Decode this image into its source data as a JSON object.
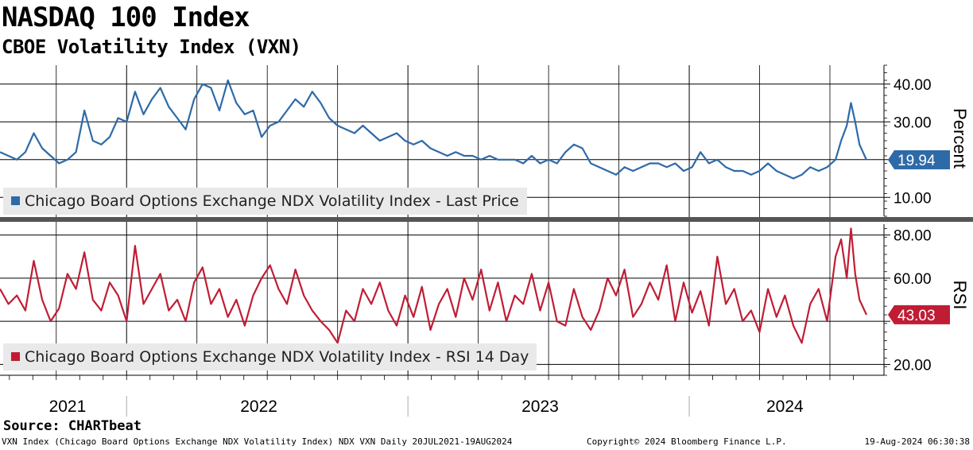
{
  "header": {
    "title": "NASDAQ 100 Index",
    "subtitle": "CBOE Volatility Index (VXN)"
  },
  "footer": {
    "source": "Source: CHARTbeat",
    "ticker_info": "VXN Index (Chicago Board Options Exchange NDX Volatility Index) NDX VXN  Daily 20JUL2021-19AUG2024",
    "copyright": "Copyright© 2024 Bloomberg Finance L.P.",
    "timestamp": "19-Aug-2024 06:30:38"
  },
  "colors": {
    "vxn_line": "#2e6aa8",
    "rsi_line": "#c01d35",
    "grid": "#000000",
    "legend_bg": "#e9e9e9",
    "separator": "#555555"
  },
  "chart_data": [
    {
      "type": "line",
      "panel": "top",
      "ylabel": "Percent",
      "ylim": [
        5,
        45
      ],
      "yticks": [
        10,
        20,
        30,
        40
      ],
      "ytick_labels": [
        "10.00",
        "",
        "30.00",
        "40.00"
      ],
      "last_value_label": "19.94",
      "last_value": 19.94,
      "legend": "Chicago Board Options Exchange NDX Volatility Index - Last Price",
      "x_range": [
        2021.55,
        2024.63
      ],
      "series": [
        {
          "name": "Chicago Board Options Exchange NDX Volatility Index - Last Price",
          "x": [
            2021.55,
            2021.58,
            2021.61,
            2021.64,
            2021.67,
            2021.7,
            2021.73,
            2021.76,
            2021.79,
            2021.82,
            2021.85,
            2021.88,
            2021.91,
            2021.94,
            2021.97,
            2022.0,
            2022.03,
            2022.06,
            2022.09,
            2022.12,
            2022.15,
            2022.18,
            2022.21,
            2022.24,
            2022.27,
            2022.3,
            2022.33,
            2022.36,
            2022.39,
            2022.42,
            2022.45,
            2022.48,
            2022.51,
            2022.54,
            2022.57,
            2022.6,
            2022.63,
            2022.66,
            2022.69,
            2022.72,
            2022.75,
            2022.78,
            2022.81,
            2022.84,
            2022.87,
            2022.9,
            2022.93,
            2022.96,
            2022.99,
            2023.02,
            2023.05,
            2023.08,
            2023.11,
            2023.14,
            2023.17,
            2023.2,
            2023.23,
            2023.26,
            2023.29,
            2023.32,
            2023.35,
            2023.38,
            2023.41,
            2023.44,
            2023.47,
            2023.5,
            2023.53,
            2023.56,
            2023.59,
            2023.62,
            2023.65,
            2023.68,
            2023.71,
            2023.74,
            2023.77,
            2023.8,
            2023.83,
            2023.86,
            2023.89,
            2023.92,
            2023.95,
            2023.98,
            2024.01,
            2024.04,
            2024.07,
            2024.1,
            2024.13,
            2024.16,
            2024.19,
            2024.22,
            2024.25,
            2024.28,
            2024.31,
            2024.34,
            2024.37,
            2024.4,
            2024.43,
            2024.46,
            2024.49,
            2024.52,
            2024.54,
            2024.56,
            2024.575,
            2024.59,
            2024.605,
            2024.63
          ],
          "values": [
            22,
            21,
            20,
            22,
            27,
            23,
            21,
            19,
            20,
            22,
            33,
            25,
            24,
            26,
            31,
            30,
            38,
            32,
            36,
            39,
            34,
            31,
            28,
            36,
            40,
            39,
            33,
            41,
            35,
            32,
            33,
            26,
            29,
            30,
            33,
            36,
            34,
            38,
            35,
            31,
            29,
            28,
            27,
            29,
            27,
            25,
            26,
            27,
            25,
            24,
            25,
            23,
            22,
            21,
            22,
            21,
            21,
            20,
            21,
            20,
            20,
            20,
            19,
            21,
            19,
            20,
            19,
            22,
            24,
            23,
            19,
            18,
            17,
            16,
            18,
            17,
            18,
            19,
            19,
            18,
            19,
            17,
            18,
            22,
            19,
            20,
            18,
            17,
            17,
            16,
            17,
            19,
            17,
            16,
            15,
            16,
            18,
            17,
            18,
            20,
            25,
            29,
            35,
            30,
            24,
            19.94
          ]
        }
      ]
    },
    {
      "type": "line",
      "panel": "bottom",
      "ylabel": "RSI",
      "ylim": [
        15,
        85
      ],
      "yticks": [
        20,
        40,
        60,
        80
      ],
      "ytick_labels": [
        "20.00",
        "",
        "60.00",
        "80.00"
      ],
      "last_value_label": "43.03",
      "last_value": 43.03,
      "legend": "Chicago Board Options Exchange NDX Volatility Index - RSI 14 Day",
      "x_range": [
        2021.55,
        2024.63
      ],
      "series": [
        {
          "name": "Chicago Board Options Exchange NDX Volatility Index - RSI 14 Day",
          "x": [
            2021.55,
            2021.58,
            2021.61,
            2021.64,
            2021.67,
            2021.7,
            2021.73,
            2021.76,
            2021.79,
            2021.82,
            2021.85,
            2021.88,
            2021.91,
            2021.94,
            2021.97,
            2022.0,
            2022.03,
            2022.06,
            2022.09,
            2022.12,
            2022.15,
            2022.18,
            2022.21,
            2022.24,
            2022.27,
            2022.3,
            2022.33,
            2022.36,
            2022.39,
            2022.42,
            2022.45,
            2022.48,
            2022.51,
            2022.54,
            2022.57,
            2022.6,
            2022.63,
            2022.66,
            2022.69,
            2022.72,
            2022.75,
            2022.78,
            2022.81,
            2022.84,
            2022.87,
            2022.9,
            2022.93,
            2022.96,
            2022.99,
            2023.02,
            2023.05,
            2023.08,
            2023.11,
            2023.14,
            2023.17,
            2023.2,
            2023.23,
            2023.26,
            2023.29,
            2023.32,
            2023.35,
            2023.38,
            2023.41,
            2023.44,
            2023.47,
            2023.5,
            2023.53,
            2023.56,
            2023.59,
            2023.62,
            2023.65,
            2023.68,
            2023.71,
            2023.74,
            2023.77,
            2023.8,
            2023.83,
            2023.86,
            2023.89,
            2023.92,
            2023.95,
            2023.98,
            2024.01,
            2024.04,
            2024.07,
            2024.1,
            2024.13,
            2024.16,
            2024.19,
            2024.22,
            2024.25,
            2024.28,
            2024.31,
            2024.34,
            2024.37,
            2024.4,
            2024.43,
            2024.46,
            2024.49,
            2024.52,
            2024.54,
            2024.56,
            2024.575,
            2024.59,
            2024.605,
            2024.63
          ],
          "values": [
            55,
            48,
            52,
            45,
            68,
            50,
            40,
            46,
            62,
            55,
            72,
            50,
            45,
            58,
            52,
            40,
            75,
            48,
            55,
            62,
            45,
            50,
            40,
            58,
            65,
            48,
            55,
            42,
            50,
            38,
            52,
            60,
            66,
            55,
            48,
            64,
            52,
            45,
            40,
            36,
            30,
            45,
            40,
            55,
            48,
            58,
            45,
            38,
            52,
            42,
            56,
            36,
            48,
            55,
            42,
            60,
            50,
            64,
            45,
            58,
            40,
            52,
            48,
            62,
            45,
            58,
            40,
            38,
            55,
            42,
            36,
            45,
            60,
            52,
            64,
            42,
            48,
            58,
            50,
            66,
            40,
            58,
            44,
            54,
            38,
            70,
            48,
            55,
            40,
            45,
            35,
            55,
            42,
            52,
            38,
            30,
            48,
            55,
            40,
            70,
            78,
            60,
            83,
            62,
            50,
            43.03
          ]
        }
      ]
    }
  ],
  "x_axis": {
    "year_labels": [
      "2021",
      "2022",
      "2023",
      "2024"
    ],
    "year_label_positions": [
      2021.79,
      2022.47,
      2023.47,
      2024.34
    ],
    "year_boundaries": [
      2022.0,
      2023.0,
      2024.0
    ]
  }
}
